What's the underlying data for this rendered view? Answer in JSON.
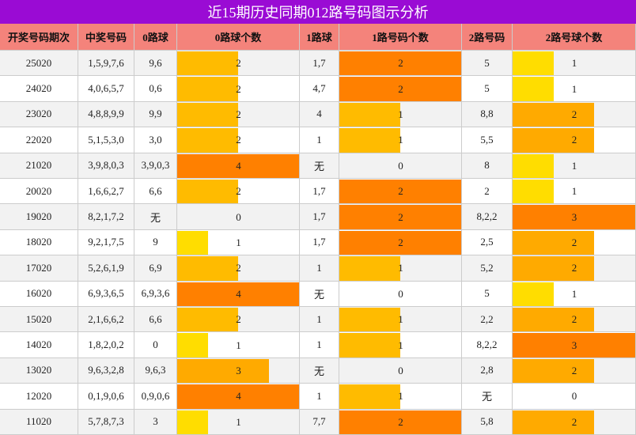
{
  "title": "近15期历史同期012路号码图示分析",
  "table": {
    "headers": [
      "开奖号码期次",
      "中奖号码",
      "0路球",
      "0路球个数",
      "1路球",
      "1路号码个数",
      "2路号码",
      "2路号球个数"
    ],
    "rows": [
      [
        "25020",
        "1,5,9,7,6",
        "9,6",
        2,
        "1,7",
        2,
        "5",
        1
      ],
      [
        "24020",
        "4,0,6,5,7",
        "0,6",
        2,
        "4,7",
        2,
        "5",
        1
      ],
      [
        "23020",
        "4,8,8,9,9",
        "9,9",
        2,
        "4",
        1,
        "8,8",
        2
      ],
      [
        "22020",
        "5,1,5,3,0",
        "3,0",
        2,
        "1",
        1,
        "5,5",
        2
      ],
      [
        "21020",
        "3,9,8,0,3",
        "3,9,0,3",
        4,
        "无",
        0,
        "8",
        1
      ],
      [
        "20020",
        "1,6,6,2,7",
        "6,6",
        2,
        "1,7",
        2,
        "2",
        1
      ],
      [
        "19020",
        "8,2,1,7,2",
        "无",
        0,
        "1,7",
        2,
        "8,2,2",
        3
      ],
      [
        "18020",
        "9,2,1,7,5",
        "9",
        1,
        "1,7",
        2,
        "2,5",
        2
      ],
      [
        "17020",
        "5,2,6,1,9",
        "6,9",
        2,
        "1",
        1,
        "5,2",
        2
      ],
      [
        "16020",
        "6,9,3,6,5",
        "6,9,3,6",
        4,
        "无",
        0,
        "5",
        1
      ],
      [
        "15020",
        "2,1,6,6,2",
        "6,6",
        2,
        "1",
        1,
        "2,2",
        2
      ],
      [
        "14020",
        "1,8,2,0,2",
        "0",
        1,
        "1",
        1,
        "8,2,2",
        3
      ],
      [
        "13020",
        "9,6,3,2,8",
        "9,6,3",
        3,
        "无",
        0,
        "2,8",
        2
      ],
      [
        "12020",
        "0,1,9,0,6",
        "0,9,0,6",
        4,
        "1",
        1,
        "无",
        0
      ],
      [
        "11020",
        "5,7,8,7,3",
        "3",
        1,
        "7,7",
        2,
        "5,8",
        2
      ]
    ]
  }
}
